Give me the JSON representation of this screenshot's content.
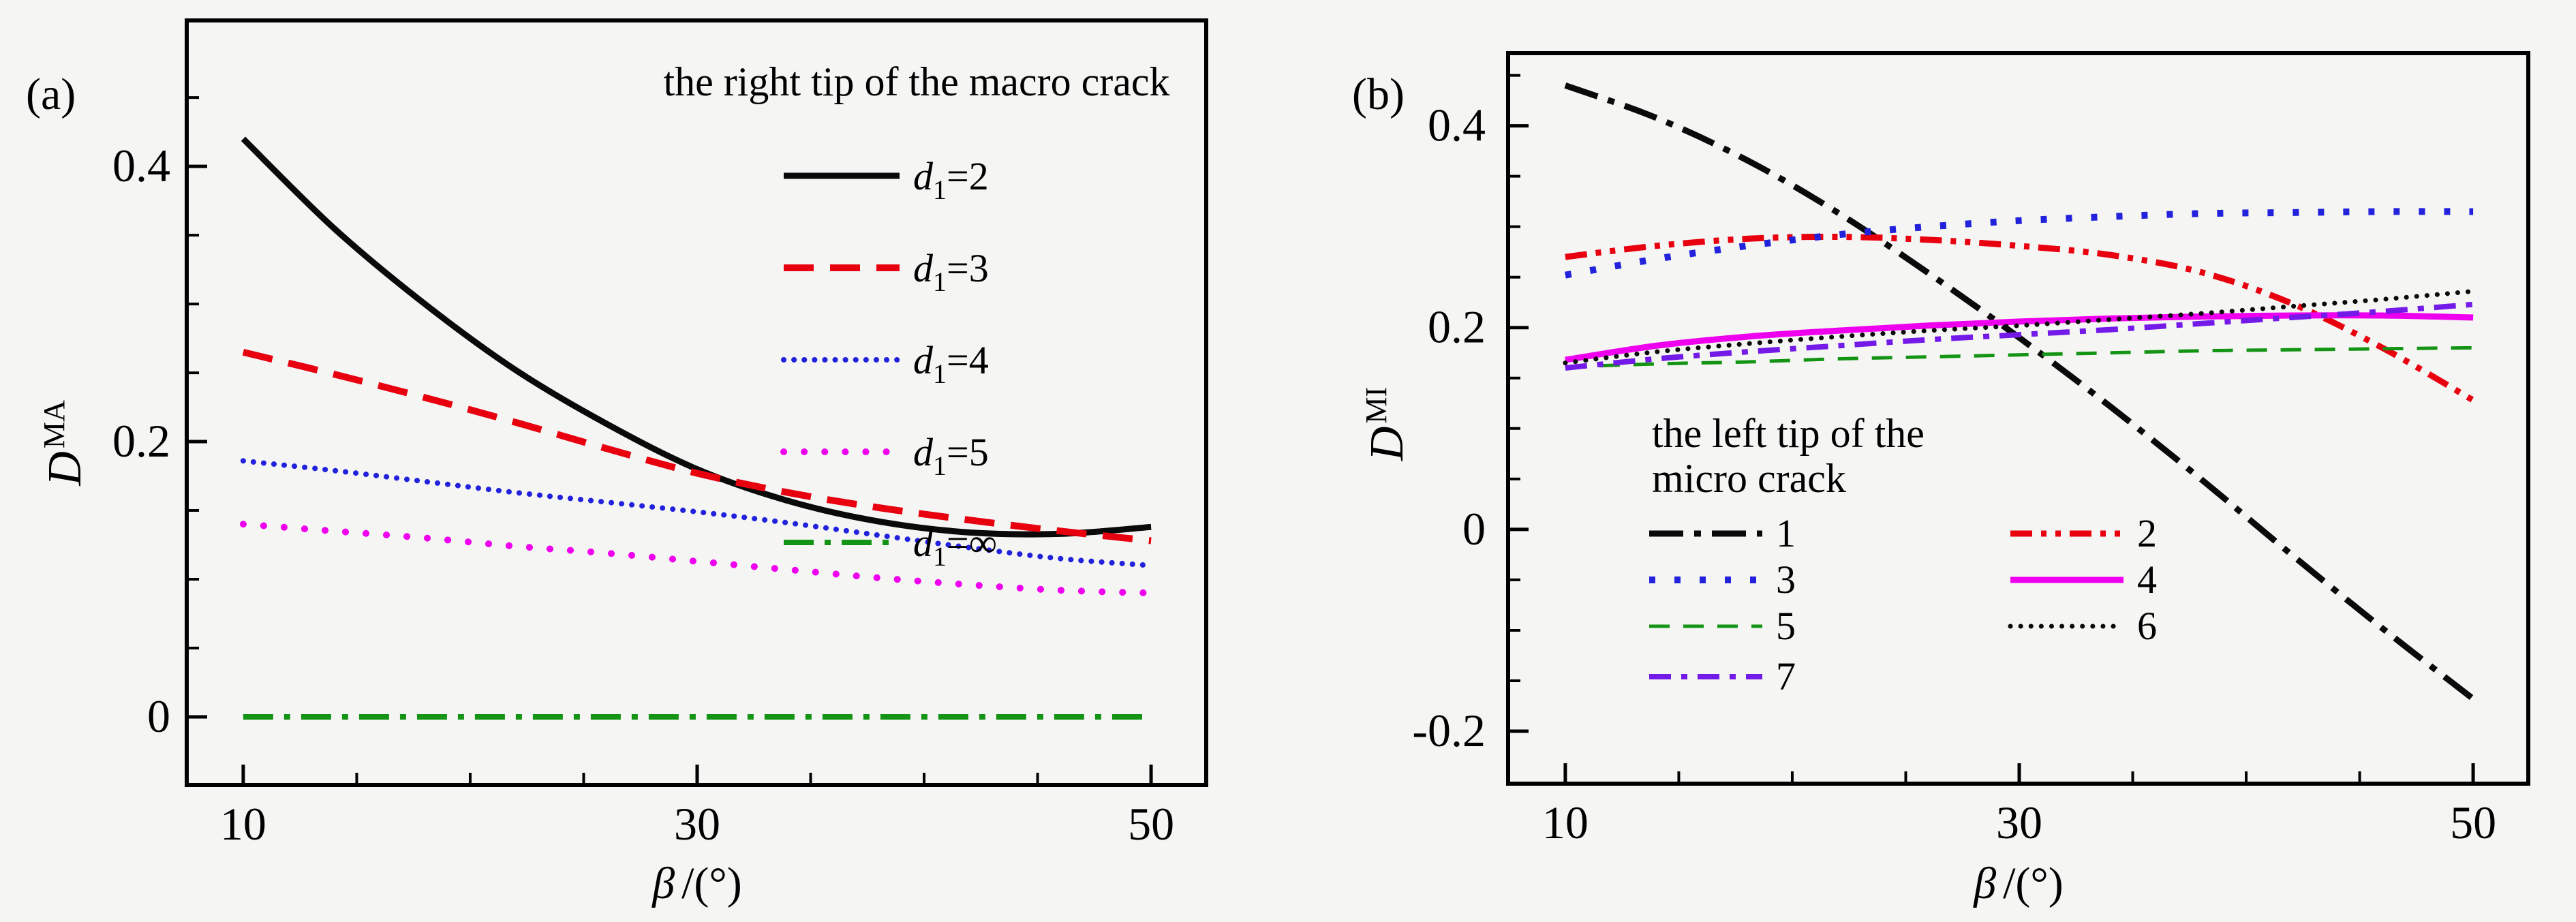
{
  "page": {
    "background": "#f5f5f3",
    "text_color": "#000000"
  },
  "chart_data": [
    {
      "id": "a",
      "panel_label": "(a)",
      "type": "line",
      "title": "the right tip of the macro crack",
      "xlabel": {
        "symbol": "β",
        "rest": "/(°)"
      },
      "ylabel": {
        "base": "D",
        "sup": "MA"
      },
      "xlim": [
        7.51,
        52.43
      ],
      "ylim": [
        -0.0495,
        0.506
      ],
      "x_ticks_major": [
        10,
        30,
        50
      ],
      "x_tick_labels": [
        "10",
        "30",
        "50"
      ],
      "x_ticks_minor": [
        15,
        20,
        25,
        35,
        40,
        45
      ],
      "y_ticks_major": [
        0.4,
        0.2,
        0
      ],
      "y_tick_labels": [
        "0.4",
        "0.2",
        "0"
      ],
      "y_ticks_minor": [
        0.45,
        0.35,
        0.3,
        0.25,
        0.15,
        0.1,
        0.05
      ],
      "grid": false,
      "legend_position": "upper-right-inside",
      "x": [
        10,
        14,
        18,
        22,
        26,
        30,
        34,
        38,
        42,
        46,
        50
      ],
      "series": [
        {
          "name": "d1=2",
          "color": "#0a0a0a",
          "dash": "none",
          "width": 9,
          "cap": "butt",
          "values": [
            0.42,
            0.355,
            0.3,
            0.252,
            0.213,
            0.18,
            0.157,
            0.142,
            0.134,
            0.133,
            0.138
          ]
        },
        {
          "name": "d1=3",
          "color": "#e8000f",
          "dash": "44 24",
          "width": 10,
          "cap": "butt",
          "values": [
            0.265,
            0.249,
            0.232,
            0.214,
            0.195,
            0.177,
            0.163,
            0.152,
            0.143,
            0.135,
            0.128
          ]
        },
        {
          "name": "d1=4",
          "color": "#2222dd",
          "dash": "0.1 15",
          "width": 8,
          "cap": "round",
          "values": [
            0.186,
            0.179,
            0.171,
            0.163,
            0.156,
            0.149,
            0.141,
            0.132,
            0.123,
            0.115,
            0.11
          ]
        },
        {
          "name": "d1=5",
          "color": "#ee00ee",
          "dash": "0.1 30",
          "width": 10,
          "cap": "round",
          "values": [
            0.14,
            0.135,
            0.13,
            0.124,
            0.119,
            0.113,
            0.107,
            0.101,
            0.096,
            0.092,
            0.09
          ]
        },
        {
          "name": "d1=inf",
          "color": "#149414",
          "dash": "44 16 9 16",
          "width": 8,
          "cap": "butt",
          "values": [
            0,
            0,
            0,
            0,
            0,
            0,
            0,
            0,
            0,
            0,
            0
          ]
        }
      ],
      "legend_items": [
        {
          "base": "d",
          "sub": "1",
          "rest": "=2",
          "series": 0
        },
        {
          "base": "d",
          "sub": "1",
          "rest": "=3",
          "series": 1
        },
        {
          "base": "d",
          "sub": "1",
          "rest": "=4",
          "series": 2
        },
        {
          "base": "d",
          "sub": "1",
          "rest": "=5",
          "series": 3
        },
        {
          "base": "d",
          "sub": "1",
          "rest": "=∞",
          "series": 4
        }
      ]
    },
    {
      "id": "b",
      "panel_label": "(b)",
      "type": "line",
      "title_lines": [
        "the left tip of the",
        "micro crack"
      ],
      "xlabel": {
        "symbol": "β",
        "rest": "/(°)"
      },
      "ylabel": {
        "base": "D",
        "sup": "MI"
      },
      "xlim": [
        7.48,
        52.43
      ],
      "ylim": [
        -0.252,
        0.472
      ],
      "x_ticks_major": [
        10,
        30,
        50
      ],
      "x_tick_labels": [
        "10",
        "30",
        "50"
      ],
      "x_ticks_minor": [
        15,
        20,
        25,
        35,
        40,
        45
      ],
      "y_ticks_major": [
        0.4,
        0.2,
        0,
        -0.2
      ],
      "y_tick_labels": [
        "0.4",
        "0.2",
        "0",
        "-0.2"
      ],
      "y_ticks_minor": [
        0.45,
        0.35,
        0.3,
        0.25,
        0.15,
        0.1,
        0.05,
        -0.05,
        -0.1,
        -0.15
      ],
      "grid": false,
      "legend_position": "lower-left-inside-two-columns",
      "x": [
        10,
        14,
        18,
        22,
        26,
        30,
        34,
        38,
        42,
        46,
        50
      ],
      "series": [
        {
          "name": "1",
          "color": "#0a0a0a",
          "dash": "50 16 10 16",
          "width": 9,
          "cap": "butt",
          "values": [
            0.44,
            0.408,
            0.366,
            0.314,
            0.254,
            0.19,
            0.122,
            0.05,
            -0.025,
            -0.098,
            -0.168
          ]
        },
        {
          "name": "2",
          "color": "#e8000f",
          "dash": "32 13 8 13 8 13",
          "width": 9,
          "cap": "butt",
          "values": [
            0.27,
            0.281,
            0.288,
            0.29,
            0.287,
            0.281,
            0.272,
            0.255,
            0.224,
            0.18,
            0.128
          ]
        },
        {
          "name": "3",
          "color": "#2222dd",
          "dash": "9 28",
          "width": 10,
          "cap": "butt",
          "values": [
            0.252,
            0.268,
            0.281,
            0.292,
            0.3,
            0.306,
            0.31,
            0.313,
            0.314,
            0.315,
            0.315
          ]
        },
        {
          "name": "4",
          "color": "#ee00ee",
          "dash": "none",
          "width": 9,
          "cap": "butt",
          "values": [
            0.168,
            0.182,
            0.191,
            0.197,
            0.202,
            0.206,
            0.209,
            0.211,
            0.212,
            0.212,
            0.21
          ]
        },
        {
          "name": "5",
          "color": "#149414",
          "dash": "30 20",
          "width": 5,
          "cap": "butt",
          "values": [
            0.161,
            0.164,
            0.166,
            0.169,
            0.171,
            0.173,
            0.175,
            0.177,
            0.178,
            0.179,
            0.18
          ]
        },
        {
          "name": "6",
          "color": "#0a0a0a",
          "dash": "0.1 15",
          "width": 7,
          "cap": "round",
          "values": [
            0.165,
            0.176,
            0.184,
            0.191,
            0.197,
            0.202,
            0.208,
            0.214,
            0.221,
            0.228,
            0.236
          ]
        },
        {
          "name": "7",
          "color": "#7319e8",
          "dash": "32 15 9 15",
          "width": 8,
          "cap": "butt",
          "values": [
            0.16,
            0.169,
            0.176,
            0.182,
            0.188,
            0.193,
            0.198,
            0.204,
            0.21,
            0.216,
            0.223
          ]
        }
      ],
      "legend_items": [
        {
          "label": "1",
          "series": 0
        },
        {
          "label": "2",
          "series": 1
        },
        {
          "label": "3",
          "series": 2
        },
        {
          "label": "4",
          "series": 3
        },
        {
          "label": "5",
          "series": 4
        },
        {
          "label": "6",
          "series": 5
        },
        {
          "label": "7",
          "series": 6
        }
      ]
    }
  ]
}
